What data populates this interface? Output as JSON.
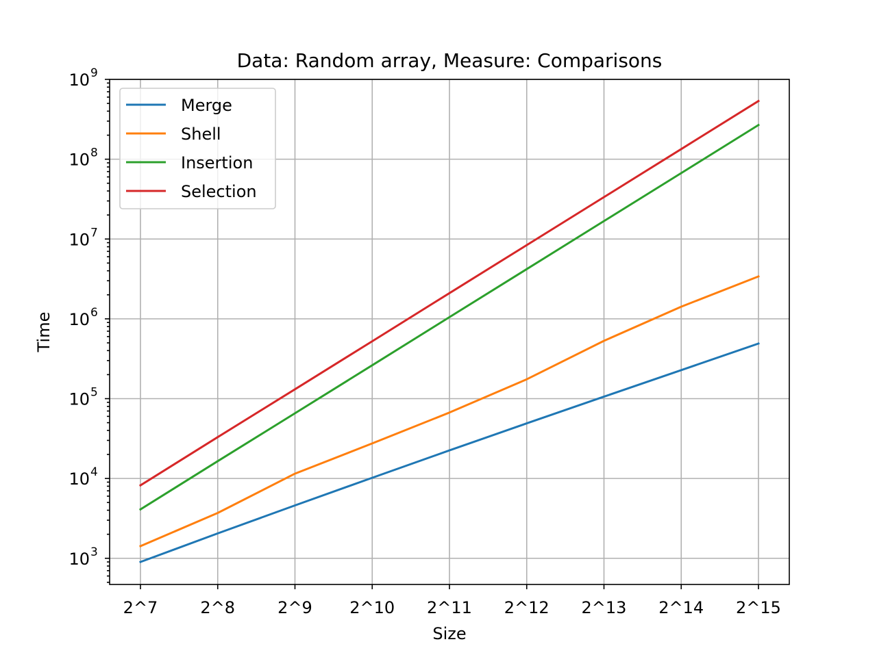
{
  "chart_data": {
    "type": "line",
    "title": "Data: Random array, Measure: Comparisons",
    "xlabel": "Size",
    "ylabel": "Time",
    "categories": [
      "2^7",
      "2^8",
      "2^9",
      "2^10",
      "2^11",
      "2^12",
      "2^13",
      "2^14",
      "2^15"
    ],
    "y_scale": "log",
    "ylim": [
      470,
      1000000000
    ],
    "y_ticks": [
      {
        "base": "10",
        "exp": "3",
        "value": 1000
      },
      {
        "base": "10",
        "exp": "4",
        "value": 10000
      },
      {
        "base": "10",
        "exp": "5",
        "value": 100000
      },
      {
        "base": "10",
        "exp": "6",
        "value": 1000000
      },
      {
        "base": "10",
        "exp": "7",
        "value": 10000000
      },
      {
        "base": "10",
        "exp": "8",
        "value": 100000000
      },
      {
        "base": "10",
        "exp": "9",
        "value": 1000000000
      }
    ],
    "grid": true,
    "legend": "top-left",
    "series": [
      {
        "name": "Merge",
        "color": "#1f77b4",
        "values": [
          900,
          2050,
          4600,
          10200,
          22500,
          49000,
          106000,
          228000,
          490000
        ]
      },
      {
        "name": "Shell",
        "color": "#ff7f0e",
        "values": [
          1420,
          3700,
          11500,
          27500,
          67000,
          175000,
          530000,
          1420000,
          3400000
        ]
      },
      {
        "name": "Insertion",
        "color": "#2ca02c",
        "values": [
          4100,
          16500,
          65500,
          262000,
          1050000,
          4200000,
          16800000,
          67000000,
          268000000
        ]
      },
      {
        "name": "Selection",
        "color": "#d62728",
        "values": [
          8200,
          33000,
          131000,
          524000,
          2100000,
          8400000,
          33500000,
          134000000,
          536000000
        ]
      }
    ]
  }
}
